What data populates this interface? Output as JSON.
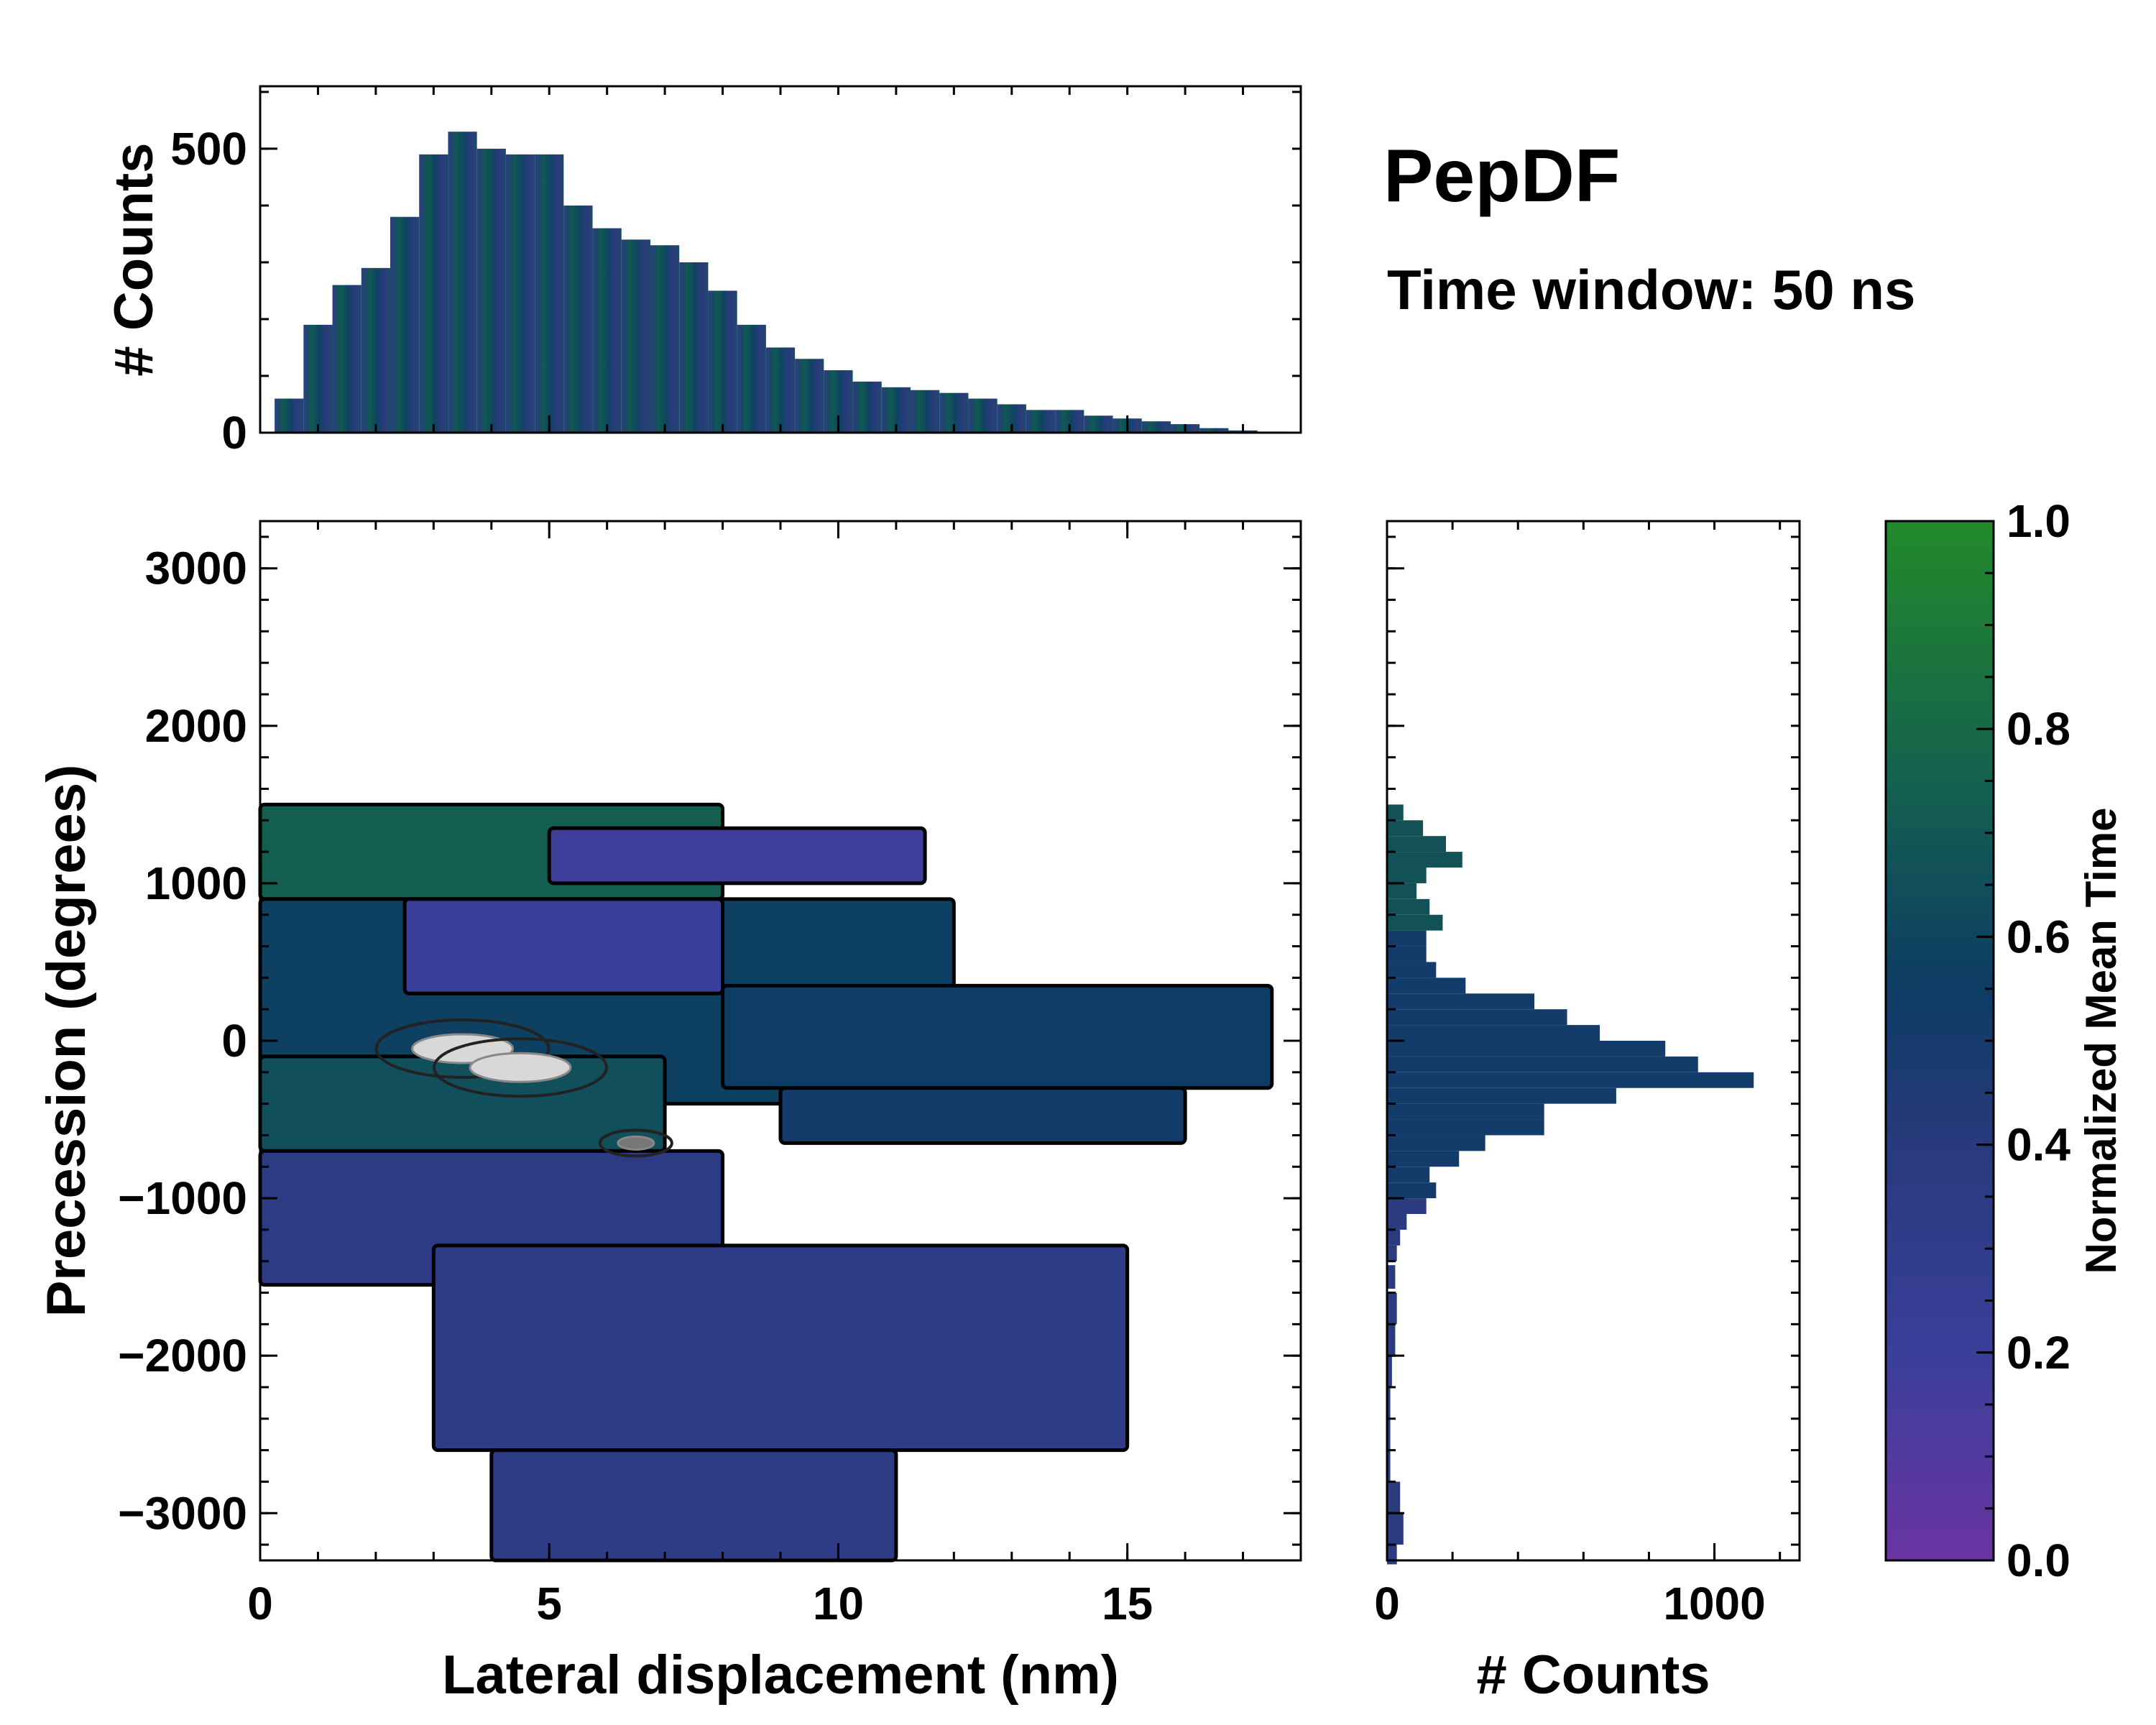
{
  "chart_data": [
    {
      "type": "heatmap",
      "id": "main",
      "xlabel": "Lateral displacement (nm)",
      "ylabel": "Precession (degrees)",
      "xlim": [
        0,
        18
      ],
      "ylim": [
        -3300,
        3300
      ],
      "xticks": [
        0,
        5,
        10,
        15
      ],
      "xtick_labels": [
        "0",
        "5",
        "10",
        "15"
      ],
      "yticks": [
        -3000,
        -2000,
        -1000,
        0,
        1000,
        2000,
        3000
      ],
      "ytick_labels": [
        "−3000",
        "−2000",
        "−1000",
        "0",
        "1000",
        "2000",
        "3000"
      ],
      "color_by": "Normalized Mean Time",
      "regions": [
        {
          "x": [
            0.0,
            8.0
          ],
          "y": [
            900,
            1500
          ],
          "value": 0.78
        },
        {
          "x": [
            5.0,
            11.5
          ],
          "y": [
            1000,
            1350
          ],
          "value": 0.18
        },
        {
          "x": [
            0.0,
            12.0
          ],
          "y": [
            -400,
            900
          ],
          "value": 0.62
        },
        {
          "x": [
            2.5,
            8.0
          ],
          "y": [
            300,
            900
          ],
          "value": 0.2
        },
        {
          "x": [
            0.0,
            7.0
          ],
          "y": [
            -700,
            -100
          ],
          "value": 0.7
        },
        {
          "x": [
            8.0,
            17.5
          ],
          "y": [
            -300,
            350
          ],
          "value": 0.6
        },
        {
          "x": [
            9.0,
            16.0
          ],
          "y": [
            -650,
            -300
          ],
          "value": 0.55
        },
        {
          "x": [
            0.0,
            8.0
          ],
          "y": [
            -1550,
            -700
          ],
          "value": 0.35
        },
        {
          "x": [
            3.0,
            15.0
          ],
          "y": [
            -2600,
            -1300
          ],
          "value": 0.32
        },
        {
          "x": [
            4.0,
            11.0
          ],
          "y": [
            -3300,
            -2600
          ],
          "value": 0.34
        }
      ],
      "hotspots": [
        {
          "x": 3.5,
          "y": -50,
          "value": "peak"
        },
        {
          "x": 4.5,
          "y": -170,
          "value": "peak"
        },
        {
          "x": 6.5,
          "y": -650,
          "value": "secondary"
        }
      ]
    },
    {
      "type": "bar",
      "id": "top_histogram",
      "ylabel": "# Counts",
      "xlim": [
        0,
        18
      ],
      "ylim": [
        0,
        610
      ],
      "yticks": [
        0,
        500
      ],
      "ytick_labels": [
        "0",
        "500"
      ],
      "bin_centers": [
        0.5,
        1.0,
        1.5,
        2.0,
        2.5,
        3.0,
        3.5,
        4.0,
        4.5,
        5.0,
        5.5,
        6.0,
        6.5,
        7.0,
        7.5,
        8.0,
        8.5,
        9.0,
        9.5,
        10.0,
        10.5,
        11.0,
        11.5,
        12.0,
        12.5,
        13.0,
        13.5,
        14.0,
        14.5,
        15.0,
        15.5,
        16.0,
        16.5,
        17.0,
        17.5
      ],
      "values": [
        60,
        190,
        260,
        290,
        380,
        490,
        530,
        500,
        490,
        490,
        400,
        360,
        340,
        330,
        300,
        250,
        190,
        150,
        130,
        110,
        90,
        80,
        75,
        70,
        60,
        50,
        40,
        40,
        30,
        25,
        20,
        15,
        8,
        4,
        2
      ]
    },
    {
      "type": "bar",
      "id": "right_histogram",
      "orientation": "horizontal",
      "xlabel": "# Counts",
      "xlim": [
        0,
        1260
      ],
      "xticks": [
        0,
        1000
      ],
      "xtick_labels": [
        "0",
        "1000"
      ],
      "bin_centers": [
        1450,
        1350,
        1250,
        1150,
        1050,
        950,
        850,
        750,
        650,
        550,
        450,
        350,
        250,
        150,
        50,
        -50,
        -150,
        -250,
        -350,
        -450,
        -550,
        -650,
        -750,
        -850,
        -950,
        -1050,
        -1150,
        -1250,
        -1350,
        -1500,
        -1700,
        -1900,
        -2100,
        -2300,
        -2500,
        -2700,
        -2900,
        -3100,
        -3250
      ],
      "values": [
        50,
        110,
        180,
        230,
        120,
        90,
        130,
        170,
        120,
        120,
        150,
        240,
        450,
        550,
        650,
        850,
        950,
        1120,
        700,
        480,
        480,
        300,
        220,
        130,
        150,
        120,
        60,
        40,
        30,
        25,
        30,
        25,
        15,
        10,
        10,
        10,
        40,
        50,
        30
      ]
    },
    {
      "type": "colorbar",
      "id": "colorbar",
      "label": "Normalized Mean Time",
      "range": [
        0.0,
        1.0
      ],
      "ticks": [
        0.0,
        0.2,
        0.4,
        0.6,
        0.8,
        1.0
      ],
      "tick_labels": [
        "0.0",
        "0.2",
        "0.4",
        "0.6",
        "0.8",
        "1.0"
      ],
      "colors": [
        "#6a34a2",
        "#3a3f9a",
        "#283a7c",
        "#0d3c64",
        "#15614f",
        "#228a2a"
      ]
    }
  ],
  "annotations": {
    "title": "PepDF",
    "subtitle": "Time window: 50 ns"
  }
}
